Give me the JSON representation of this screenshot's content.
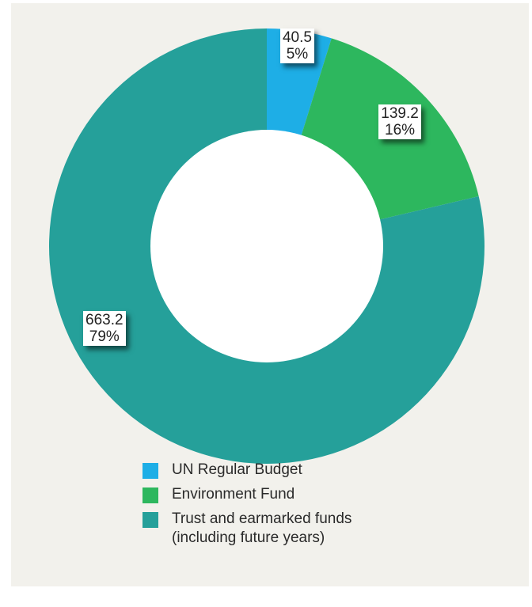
{
  "chart_data": {
    "type": "pie",
    "donut": true,
    "title": "",
    "slices": [
      {
        "name": "UN Regular Budget",
        "value": 40.5,
        "percent_label": "5%",
        "value_label": "40.5",
        "color": "#1eaee6"
      },
      {
        "name": "Environment Fund",
        "value": 139.2,
        "percent_label": "16%",
        "value_label": "139.2",
        "color": "#2db75e"
      },
      {
        "name": "Trust and earmarked funds\n(including future years)",
        "value": 663.2,
        "percent_label": "79%",
        "value_label": "663.2",
        "color": "#25a09a"
      }
    ],
    "legend_position": "bottom"
  },
  "colors": {
    "panel_background": "#f2f1ec",
    "label_background": "#ffffff"
  }
}
